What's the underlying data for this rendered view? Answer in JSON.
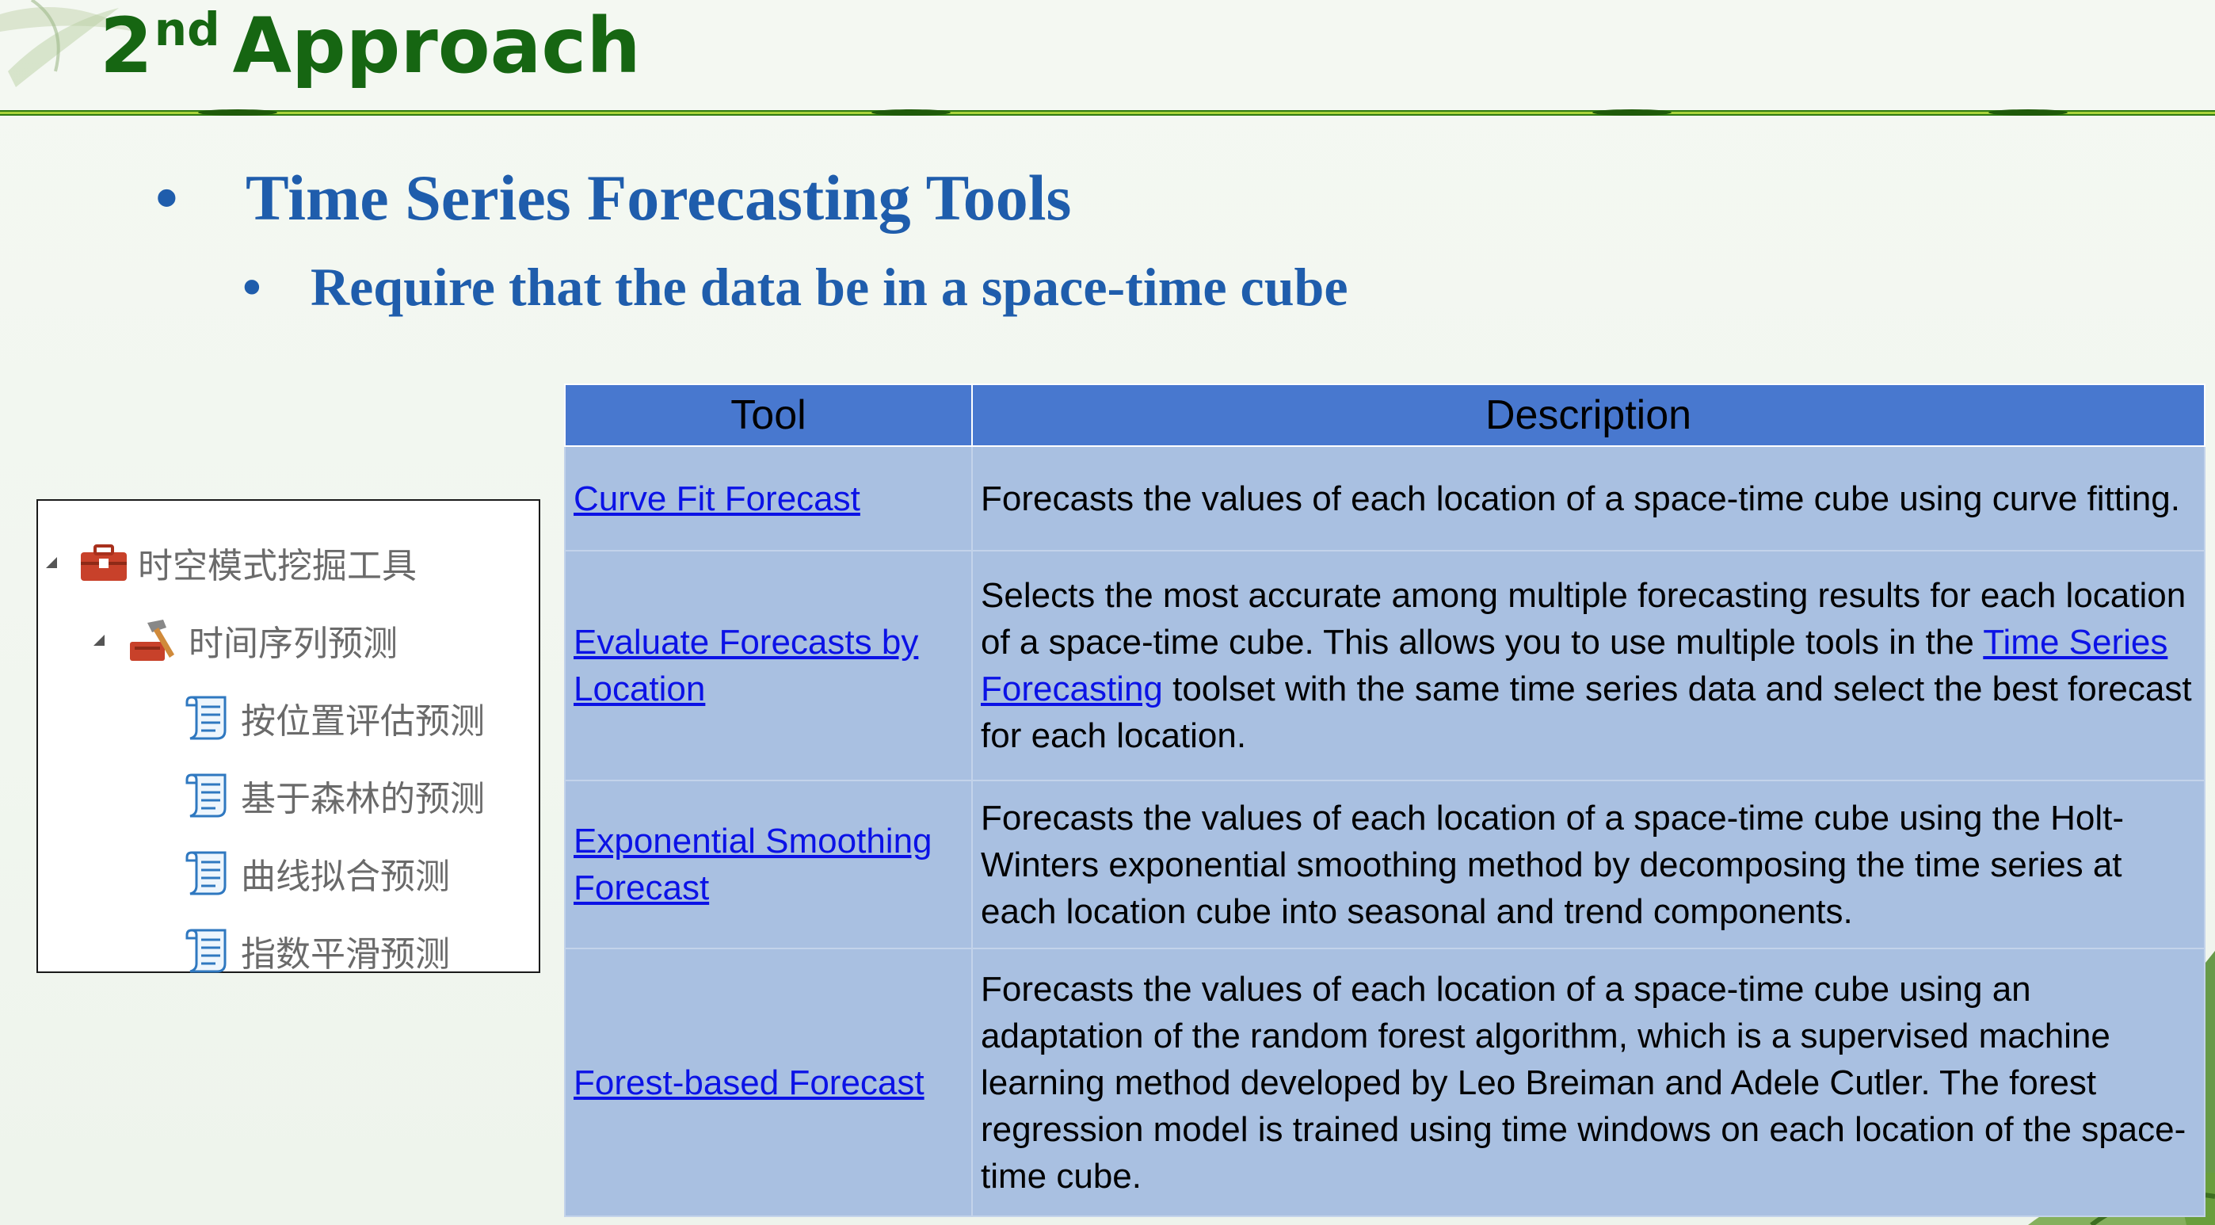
{
  "slide": {
    "title_number": "2",
    "title_superscript": "nd",
    "title_word": "Approach",
    "bullets": [
      {
        "symbol": "•",
        "text": "Time Series Forecasting Tools",
        "level": 1
      },
      {
        "symbol": "•",
        "text": "Require that the data be in a space-time cube",
        "level": 2
      }
    ]
  },
  "tree": {
    "items": [
      {
        "label": "时空模式挖掘工具",
        "icon": "toolbox-icon",
        "expanded": true
      },
      {
        "label": "时间序列预测",
        "icon": "toolset-hammer-icon",
        "expanded": true
      },
      {
        "label": "按位置评估预测",
        "icon": "script-tool-icon"
      },
      {
        "label": "基于森林的预测",
        "icon": "script-tool-icon"
      },
      {
        "label": "曲线拟合预测",
        "icon": "script-tool-icon"
      },
      {
        "label": "指数平滑预测",
        "icon": "script-tool-icon"
      }
    ]
  },
  "table": {
    "headers": {
      "tool": "Tool",
      "description": "Description"
    },
    "rows": [
      {
        "tool": "Curve Fit Forecast",
        "description": "Forecasts the values of each location of a space-time cube using curve fitting."
      },
      {
        "tool": "Evaluate Forecasts by Location",
        "description_before": "Selects the most accurate among multiple forecasting results for each location of a space-time cube. This allows you to use multiple tools in the ",
        "description_link": "Time Series Forecasting",
        "description_after": " toolset with the same time series data and select the best forecast for each location."
      },
      {
        "tool": "Exponential Smoothing Forecast",
        "description": "Forecasts the values of each location of a space-time cube using the Holt-Winters exponential smoothing method by decomposing the time series at each location cube into seasonal and trend components."
      },
      {
        "tool": "Forest-based Forecast",
        "description": "Forecasts the values of each location of a space-time cube using an adaptation of the random forest algorithm, which is a supervised machine learning method developed by Leo Breiman and Adele Cutler. The forest regression model is trained using time windows on each location of the space-time cube."
      }
    ]
  },
  "colors": {
    "title": "#166612",
    "bullet_text": "#1f5dac",
    "header_bg": "#4878cf",
    "cell_bg": "#a9c0e1",
    "link": "#0b12e6"
  }
}
